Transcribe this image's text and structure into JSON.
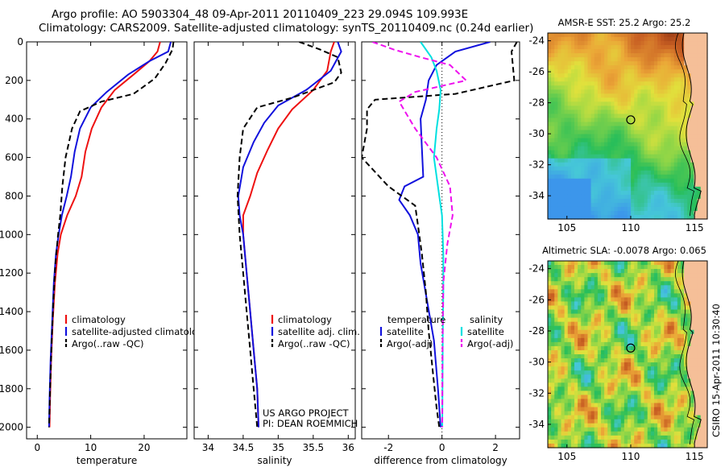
{
  "title": {
    "line1": "Argo profile: AO 5903304_48 09-Apr-2011 20110409_223 29.094S 109.993E",
    "line2": "Climatology: CARS2009. Satellite-adjusted climatology: synTS_20110409.nc (0.24d earlier)"
  },
  "depth_axis": {
    "ticks": [
      0,
      200,
      400,
      600,
      800,
      1000,
      1200,
      1400,
      1600,
      1800,
      2000
    ],
    "range": [
      0,
      2060
    ]
  },
  "chart_data": [
    {
      "type": "line",
      "id": "temperature",
      "xlabel": "temperature",
      "ylabel": "",
      "xlim": [
        -2,
        28
      ],
      "xticks": [
        0,
        10,
        20
      ],
      "ylim": [
        0,
        2060
      ],
      "legend": [
        {
          "label": "climatology",
          "series": "climatology"
        },
        {
          "label": "satellite-adjusted climatology",
          "series": "satellite"
        },
        {
          "label": "Argo(..raw -QC)",
          "series": "argo"
        }
      ],
      "series": [
        {
          "name": "climatology",
          "color": "#ee1111",
          "style": "solid",
          "x": [
            23,
            22.5,
            21,
            18,
            14.5,
            12,
            10.2,
            9,
            8.3,
            7.2,
            5.6,
            4.4,
            3.8,
            3.3,
            2.9,
            2.6,
            2.4,
            2.3
          ],
          "y": [
            0,
            50,
            100,
            170,
            250,
            340,
            450,
            570,
            700,
            800,
            900,
            1000,
            1100,
            1250,
            1450,
            1650,
            1850,
            2000
          ]
        },
        {
          "name": "satellite",
          "color": "#1111dd",
          "style": "solid",
          "x": [
            25,
            24.5,
            21,
            17,
            13,
            10,
            8,
            7,
            6.3,
            5.5,
            4.6,
            4,
            3.5,
            3.1,
            2.8,
            2.5,
            2.3,
            2.2
          ],
          "y": [
            0,
            50,
            100,
            170,
            260,
            340,
            450,
            570,
            700,
            800,
            900,
            1000,
            1100,
            1250,
            1450,
            1650,
            1850,
            2000
          ]
        },
        {
          "name": "argo",
          "color": "#000000",
          "style": "dash",
          "x": [
            25.5,
            25.3,
            24,
            22,
            18,
            12,
            8,
            6.5,
            5.3,
            4.7,
            4.3,
            3.9,
            3.4,
            3,
            2.7,
            2.4,
            2.2
          ],
          "y": [
            0,
            40,
            110,
            190,
            270,
            310,
            360,
            450,
            600,
            750,
            900,
            1000,
            1150,
            1350,
            1550,
            1800,
            2000
          ]
        }
      ]
    },
    {
      "type": "line",
      "id": "salinity",
      "xlabel": "salinity",
      "ylabel": "",
      "xlim": [
        33.8,
        36.1
      ],
      "xticks": [
        34,
        34.5,
        35,
        35.5,
        36
      ],
      "ylim": [
        0,
        2060
      ],
      "legend": [
        {
          "label": "climatology",
          "series": "climatology"
        },
        {
          "label": "satellite adj. clim.",
          "series": "satellite"
        },
        {
          "label": "Argo(..raw -QC)",
          "series": "argo"
        }
      ],
      "annotation": [
        "US ARGO PROJECT",
        "PI: DEAN ROEMMICH"
      ],
      "series": [
        {
          "name": "climatology",
          "color": "#ee1111",
          "style": "solid",
          "x": [
            35.8,
            35.75,
            35.7,
            35.5,
            35.2,
            35,
            34.85,
            34.7,
            34.6,
            34.5,
            34.5,
            34.55,
            34.6,
            34.65,
            34.7,
            34.72
          ],
          "y": [
            0,
            50,
            150,
            250,
            350,
            450,
            560,
            680,
            800,
            900,
            1000,
            1200,
            1400,
            1600,
            1800,
            2000
          ]
        },
        {
          "name": "satellite",
          "color": "#1111dd",
          "style": "solid",
          "x": [
            35.85,
            35.9,
            35.75,
            35.4,
            35,
            34.8,
            34.65,
            34.5,
            34.43,
            34.45,
            34.5,
            34.55,
            34.6,
            34.65,
            34.7,
            34.72
          ],
          "y": [
            0,
            50,
            150,
            250,
            330,
            420,
            520,
            650,
            800,
            900,
            1000,
            1200,
            1400,
            1600,
            1800,
            2000
          ]
        },
        {
          "name": "argo",
          "color": "#000000",
          "style": "dash",
          "x": [
            35.3,
            35.6,
            35.85,
            35.9,
            35.8,
            35.5,
            35.2,
            34.7,
            34.5,
            34.45,
            34.42,
            34.45,
            34.5,
            34.55,
            34.6,
            34.65,
            34.7
          ],
          "y": [
            0,
            40,
            80,
            160,
            210,
            250,
            290,
            340,
            450,
            600,
            800,
            1000,
            1200,
            1400,
            1600,
            1800,
            2000
          ]
        }
      ]
    },
    {
      "type": "line",
      "id": "difference",
      "xlabel": "difference from climatology",
      "ylabel": "",
      "xlim": [
        -3,
        2.9
      ],
      "xticks": [
        -2,
        0,
        2
      ],
      "ylim": [
        0,
        2060
      ],
      "legend": [
        {
          "label": "temperature",
          "series": ""
        },
        {
          "label": "satellite",
          "series": "t_satellite"
        },
        {
          "label": "Argo(-adj)",
          "series": "t_argo"
        },
        {
          "label": "salinity",
          "series": ""
        },
        {
          "label": "satellite",
          "series": "s_satellite"
        },
        {
          "label": "Argo(-adj)",
          "series": "s_argo"
        }
      ],
      "series": [
        {
          "name": "t_satellite",
          "color": "#1111dd",
          "style": "solid",
          "x": [
            1.8,
            0.5,
            -0.2,
            -0.5,
            -0.6,
            -0.8,
            -0.75,
            -0.7,
            -1.4,
            -1.6,
            -1.2,
            -0.9,
            -0.8,
            -0.55,
            -0.3,
            -0.15,
            -0.05
          ],
          "y": [
            0,
            50,
            120,
            200,
            300,
            400,
            550,
            700,
            750,
            820,
            900,
            1000,
            1150,
            1350,
            1550,
            1800,
            2000
          ]
        },
        {
          "name": "t_argo",
          "color": "#000000",
          "style": "dash",
          "x": [
            2.8,
            2.6,
            2.7,
            0.5,
            -2.5,
            -2.8,
            -2.8,
            -3,
            -2,
            -1.0,
            -0.9,
            -0.75,
            -0.6,
            -0.5,
            -0.35,
            -0.2,
            -0.1
          ],
          "y": [
            0,
            50,
            200,
            270,
            300,
            350,
            450,
            600,
            750,
            850,
            950,
            1100,
            1300,
            1500,
            1700,
            1900,
            2000
          ]
        },
        {
          "name": "s_satellite",
          "color": "#00e0e0",
          "style": "solid",
          "x": [
            -0.8,
            -0.4,
            -0.2,
            -0.05,
            -0.1,
            -0.2,
            -0.3,
            -0.2,
            -0.1,
            0,
            0.05,
            0.05,
            0.03,
            0.02,
            0.01
          ],
          "y": [
            0,
            80,
            150,
            250,
            350,
            450,
            600,
            700,
            800,
            900,
            1100,
            1300,
            1500,
            1800,
            2000
          ]
        },
        {
          "name": "s_argo",
          "color": "#ee11ee",
          "style": "dash",
          "x": [
            -2.6,
            -1.8,
            -0.8,
            0.3,
            0.9,
            -1.0,
            -1.6,
            -1.0,
            -0.2,
            0.3,
            0.4,
            0.2,
            0.05,
            0.02,
            0.01
          ],
          "y": [
            0,
            40,
            80,
            120,
            200,
            260,
            310,
            450,
            600,
            750,
            900,
            1050,
            1250,
            1600,
            2000
          ]
        }
      ]
    },
    {
      "type": "heatmap",
      "id": "sst_map",
      "title": "AMSR-E SST: 25.2 Argo: 25.2",
      "xlim": [
        103.5,
        116
      ],
      "ylim": [
        -35.5,
        -23.5
      ],
      "xticks": [
        105,
        110,
        115
      ],
      "yticks": [
        -24,
        -26,
        -28,
        -30,
        -32,
        -34
      ],
      "marker": {
        "lon": 110,
        "lat": -29.1
      }
    },
    {
      "type": "heatmap",
      "id": "sla_map",
      "title": "Altimetric SLA: -0.0078 Argo: 0.065",
      "xlim": [
        103.5,
        116
      ],
      "ylim": [
        -35.5,
        -23.5
      ],
      "xticks": [
        105,
        110,
        115
      ],
      "yticks": [
        -24,
        -26,
        -28,
        -30,
        -32,
        -34
      ],
      "marker": {
        "lon": 110,
        "lat": -29.1
      }
    }
  ],
  "footer": {
    "credit": "CSIRO 15-Apr-2011 10:30:40"
  },
  "colors": {
    "land": "#f5bf98",
    "axis": "#000000"
  }
}
